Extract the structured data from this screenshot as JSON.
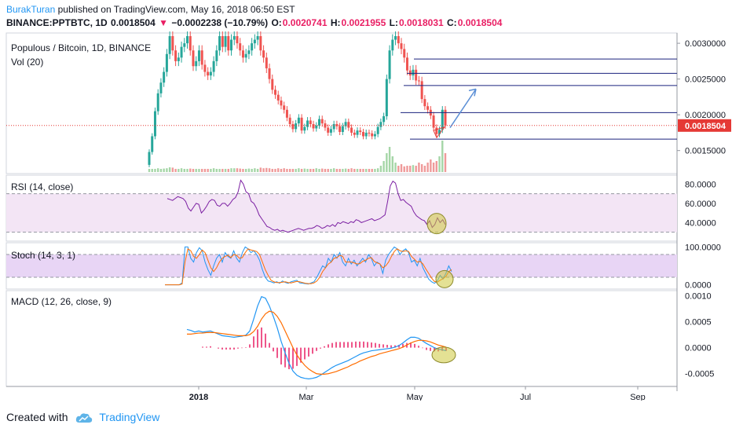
{
  "header": {
    "author": "BurakTuran",
    "published": "published on TradingView.com, May 16, 2018 06:50 EST",
    "symbol": "BINANCE:PPTBTC, 1D",
    "last": "0.0018504",
    "change": "−0.0002238 (−10.79%)",
    "o_label": "O:",
    "o": "0.0020741",
    "h_label": "H:",
    "h": "0.0021955",
    "l_label": "L:",
    "l": "0.0018031",
    "c_label": "C:",
    "c": "0.0018504"
  },
  "footer": {
    "created_with": "Created with",
    "brand": "TradingView"
  },
  "colors": {
    "up": "#26a69a",
    "down": "#ef5350",
    "rsi": "#7b1fa2",
    "band": "#e1bee7",
    "stoch_k": "#2196f3",
    "stoch_d": "#ff6d00",
    "macd": "#2196f3",
    "signal": "#ff6d00",
    "hist": "#e91e63",
    "line": "#1a237e",
    "arrow": "#5b8fd6",
    "price_tag": "#e53935"
  },
  "chart_data": [
    {
      "type": "candlestick",
      "title": "Populous / Bitcoin, 1D, BINANCE",
      "volume_label": "Vol (20)",
      "y_ticks": [
        "0.0030000",
        "0.0025000",
        "0.0020000",
        "0.0015000"
      ],
      "ylim": [
        0.0012,
        0.0031
      ],
      "x_ticks": [
        "2018",
        "Mar",
        "May",
        "Jul",
        "Sep"
      ],
      "current_price": "0.0018504",
      "horizontal_levels": [
        0.00278,
        0.00258,
        0.00241,
        0.00203,
        0.00166
      ],
      "drawn_arrow": {
        "from": [
          0.0017,
          0.00182
        ],
        "to": [
          0.0021,
          0.00236
        ]
      },
      "closes": [
        0.00148,
        0.0017,
        0.00205,
        0.0023,
        0.00245,
        0.0026,
        0.00285,
        0.0031,
        0.0029,
        0.00275,
        0.0028,
        0.00295,
        0.003,
        0.0031,
        0.0029,
        0.00268,
        0.00275,
        0.0029,
        0.0027,
        0.0026,
        0.00255,
        0.0026,
        0.00275,
        0.0029,
        0.0031,
        0.00295,
        0.0031,
        0.0029,
        0.00305,
        0.0031,
        0.003,
        0.0029,
        0.0028,
        0.00285,
        0.0029,
        0.003,
        0.00305,
        0.0031,
        0.0029,
        0.0028,
        0.00265,
        0.0025,
        0.00235,
        0.00228,
        0.0022,
        0.00213,
        0.00207,
        0.00196,
        0.00187,
        0.0018,
        0.00188,
        0.00196,
        0.00178,
        0.00183,
        0.00192,
        0.00187,
        0.00181,
        0.00185,
        0.00194,
        0.00188,
        0.00182,
        0.00175,
        0.0018,
        0.00187,
        0.00184,
        0.00176,
        0.00184,
        0.0019,
        0.00182,
        0.00175,
        0.00172,
        0.00178,
        0.00176,
        0.0017,
        0.00175,
        0.00174,
        0.0017,
        0.00173,
        0.00183,
        0.0019,
        0.00198,
        0.0025,
        0.0029,
        0.00305,
        0.0031,
        0.003,
        0.00292,
        0.0028,
        0.00262,
        0.00255,
        0.00263,
        0.00248,
        0.00247,
        0.00222,
        0.00212,
        0.00207,
        0.00199,
        0.00182,
        0.00173,
        0.00179,
        0.00207,
        0.00185
      ],
      "volumes": [
        0.1,
        0.1,
        0.1,
        0.12,
        0.1,
        0.11,
        0.12,
        0.15,
        0.14,
        0.1,
        0.1,
        0.12,
        0.1,
        0.1,
        0.11,
        0.1,
        0.1,
        0.1,
        0.1,
        0.1,
        0.1,
        0.1,
        0.12,
        0.1,
        0.1,
        0.1,
        0.1,
        0.1,
        0.12,
        0.12,
        0.12,
        0.11,
        0.1,
        0.1,
        0.11,
        0.1,
        0.12,
        0.1,
        0.14,
        0.12,
        0.13,
        0.12,
        0.1,
        0.1,
        0.12,
        0.1,
        0.12,
        0.1,
        0.1,
        0.1,
        0.1,
        0.12,
        0.1,
        0.11,
        0.1,
        0.1,
        0.1,
        0.12,
        0.1,
        0.11,
        0.1,
        0.1,
        0.1,
        0.12,
        0.1,
        0.1,
        0.1,
        0.11,
        0.1,
        0.12,
        0.1,
        0.1,
        0.1,
        0.1,
        0.1,
        0.1,
        0.1,
        0.1,
        0.12,
        0.2,
        0.35,
        0.6,
        0.8,
        0.5,
        0.3,
        0.2,
        0.25,
        0.18,
        0.2,
        0.2,
        0.22,
        0.2,
        0.3,
        0.25,
        0.2,
        0.3,
        0.4,
        0.3,
        0.35,
        0.5,
        1.0,
        0.6
      ]
    },
    {
      "type": "line",
      "title": "RSI (14, close)",
      "y_ticks": [
        "80.0000",
        "60.0000",
        "40.0000"
      ],
      "ylim": [
        24,
        86
      ],
      "band": [
        30,
        70
      ],
      "values": [
        65,
        64,
        63,
        65,
        67,
        66,
        65,
        62,
        55,
        52,
        56,
        60,
        59,
        50,
        53,
        57,
        62,
        64,
        63,
        58,
        57,
        60,
        60,
        57,
        60,
        64,
        66,
        72,
        84,
        80,
        72,
        70,
        62,
        60,
        55,
        48,
        44,
        40,
        36,
        35,
        33,
        32,
        33,
        31,
        32,
        31,
        30,
        31,
        32,
        33,
        34,
        33,
        32,
        33,
        34,
        34,
        35,
        37,
        36,
        34,
        35,
        37,
        36,
        38,
        36,
        40,
        39,
        41,
        40,
        39,
        41,
        40,
        43,
        42,
        40,
        41,
        42,
        43,
        44,
        42,
        43,
        44,
        46,
        48,
        62,
        78,
        83,
        81,
        70,
        63,
        64,
        61,
        59,
        57,
        51,
        47,
        45,
        43,
        42,
        38,
        42,
        35,
        38,
        45,
        40,
        43,
        38
      ]
    },
    {
      "type": "line",
      "title": "Stoch (14, 3, 1)",
      "y_ticks": [
        "100.0000",
        "0.0000"
      ],
      "ylim": [
        -5,
        105
      ],
      "band": [
        20,
        80
      ],
      "series": [
        {
          "values": [
            0,
            0,
            0,
            0,
            0,
            0,
            5,
            100,
            100,
            70,
            60,
            85,
            98,
            90,
            60,
            40,
            25,
            50,
            70,
            80,
            60,
            85,
            75,
            70,
            90,
            70,
            60,
            85,
            100,
            95,
            85,
            90,
            80,
            65,
            40,
            20,
            10,
            8,
            5,
            8,
            4,
            10,
            6,
            4,
            8,
            10,
            12,
            5,
            4,
            3,
            2,
            5,
            8,
            20,
            35,
            50,
            45,
            70,
            60,
            80,
            70,
            85,
            60,
            50,
            70,
            55,
            65,
            50,
            60,
            70,
            60,
            80,
            70,
            50,
            60,
            55,
            30,
            65,
            80,
            90,
            100,
            95,
            80,
            90,
            95,
            85,
            60,
            65,
            50,
            70,
            45,
            30,
            15,
            8,
            4,
            10,
            25,
            15,
            30,
            50,
            35
          ]
        },
        {
          "values": [
            0,
            0,
            0,
            0,
            0,
            0,
            2,
            60,
            95,
            90,
            75,
            70,
            80,
            92,
            85,
            65,
            45,
            35,
            45,
            60,
            70,
            75,
            78,
            72,
            80,
            78,
            70,
            72,
            85,
            95,
            92,
            90,
            88,
            80,
            60,
            40,
            25,
            12,
            8,
            6,
            6,
            7,
            8,
            6,
            5,
            7,
            9,
            8,
            6,
            4,
            3,
            3,
            5,
            10,
            20,
            35,
            45,
            55,
            60,
            70,
            72,
            78,
            75,
            60,
            60,
            60,
            58,
            55,
            56,
            62,
            65,
            70,
            72,
            62,
            58,
            55,
            45,
            50,
            60,
            75,
            88,
            95,
            90,
            88,
            90,
            88,
            75,
            68,
            60,
            62,
            55,
            42,
            30,
            18,
            9,
            7,
            12,
            16,
            22,
            35,
            40
          ]
        }
      ]
    },
    {
      "type": "line",
      "title": "MACD (12, 26, close, 9)",
      "y_ticks": [
        "0.0010",
        "0.0005",
        "0.0000",
        "-0.0005"
      ],
      "ylim": [
        -0.0007,
        0.00105
      ],
      "series": [
        {
          "values": [
            0.00035,
            0.00033,
            0.0003,
            0.00032,
            0.0003,
            0.00031,
            0.00032,
            0.00029,
            0.00026,
            0.00023,
            0.00022,
            0.00021,
            0.0002,
            0.00021,
            0.00022,
            0.00024,
            0.00032,
            0.00055,
            0.0008,
            0.00098,
            0.00095,
            0.0008,
            0.0006,
            0.00038,
            0.00012,
            -0.0001,
            -0.0003,
            -0.00045,
            -0.00053,
            -0.00057,
            -0.00059,
            -0.0006,
            -0.00059,
            -0.00057,
            -0.00053,
            -0.00048,
            -0.00043,
            -0.00038,
            -0.00034,
            -0.00031,
            -0.00028,
            -0.00025,
            -0.00021,
            -0.00017,
            -0.00013,
            -0.0001,
            -8e-05,
            -6e-05,
            -5e-05,
            -4e-05,
            -3e-05,
            -2e-05,
            -1e-05,
            1e-05,
            4e-05,
            9e-05,
            0.00015,
            0.0002,
            0.0002,
            0.00018,
            0.00013,
            8e-05,
            4e-05,
            0.0,
            -3e-05,
            -4e-05,
            -6e-05
          ]
        },
        {
          "values": [
            0.00026,
            0.00026,
            0.00027,
            0.00028,
            0.00028,
            0.00029,
            0.00029,
            0.00029,
            0.00028,
            0.00027,
            0.00026,
            0.00025,
            0.00024,
            0.00023,
            0.00023,
            0.00023,
            0.00025,
            0.00031,
            0.00041,
            0.00055,
            0.00065,
            0.0007,
            0.00068,
            0.0006,
            0.00048,
            0.00032,
            0.00016,
            0.0,
            -0.00014,
            -0.00025,
            -0.00034,
            -0.00041,
            -0.00046,
            -0.0005,
            -0.00051,
            -0.00051,
            -0.0005,
            -0.00048,
            -0.00046,
            -0.00043,
            -0.0004,
            -0.00037,
            -0.00033,
            -0.0003,
            -0.00026,
            -0.00023,
            -0.0002,
            -0.00017,
            -0.00015,
            -0.00012,
            -0.0001,
            -8e-05,
            -6e-05,
            -4e-05,
            -2e-05,
            1e-05,
            5e-05,
            9e-05,
            0.00012,
            0.00014,
            0.00014,
            0.00013,
            0.00011,
            8e-05,
            5e-05,
            3e-05,
            1e-05
          ]
        }
      ]
    }
  ]
}
